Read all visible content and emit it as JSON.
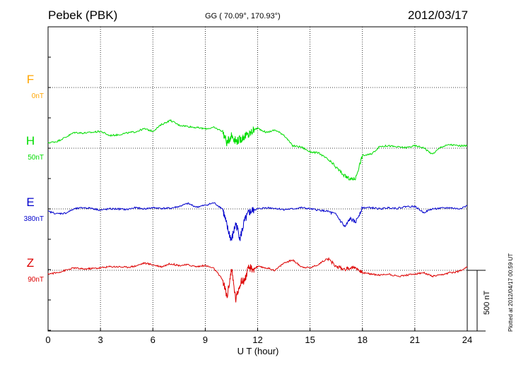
{
  "header": {
    "station": "Pebek (PBK)",
    "coords": "GG ( 70.09°, 170.93°)",
    "date": "2012/03/17"
  },
  "plotted_note": "Plotted at 2012/04/17 00:59 UT",
  "colors": {
    "F": "#ffa500",
    "H": "#00dd00",
    "E": "#0000cc",
    "Z": "#dd0000"
  },
  "chart_data": {
    "type": "line",
    "xlabel": "U T (hour)",
    "xlim": [
      0,
      24
    ],
    "x_ticks": [
      "0",
      "3",
      "6",
      "9",
      "12",
      "15",
      "18",
      "21",
      "24"
    ],
    "scale_bar_label": "500 nT",
    "series": [
      {
        "name": "F",
        "offset_label": "0nT",
        "x": [],
        "y": []
      },
      {
        "name": "H",
        "offset_label": "50nT",
        "x": [
          0,
          0.5,
          1,
          1.5,
          2,
          2.5,
          3,
          3.5,
          4,
          4.5,
          5,
          5.5,
          6,
          6.5,
          7,
          7.5,
          8,
          8.5,
          9,
          9.5,
          10,
          10.25,
          10.5,
          10.75,
          11,
          11.25,
          11.5,
          11.75,
          12,
          12.5,
          13,
          13.5,
          14,
          14.5,
          15,
          15.5,
          16,
          16.5,
          17,
          17.3,
          17.6,
          18,
          18.5,
          19,
          19.5,
          20,
          20.5,
          21,
          21.5,
          22,
          22.5,
          23,
          23.5,
          24
        ],
        "y": [
          45,
          55,
          90,
          130,
          125,
          130,
          140,
          105,
          110,
          125,
          135,
          160,
          140,
          195,
          230,
          190,
          180,
          170,
          160,
          170,
          140,
          40,
          110,
          60,
          70,
          100,
          110,
          150,
          165,
          130,
          150,
          110,
          20,
          10,
          -30,
          -40,
          -90,
          -160,
          -230,
          -255,
          -250,
          -60,
          -50,
          15,
          20,
          10,
          5,
          20,
          5,
          -50,
          10,
          30,
          20,
          20
        ]
      },
      {
        "name": "E",
        "offset_label": "380nT",
        "x": [
          0,
          0.5,
          1,
          1.5,
          2,
          2.5,
          3,
          3.5,
          4,
          4.5,
          5,
          5.5,
          6,
          6.5,
          7,
          7.5,
          8,
          8.5,
          9,
          9.5,
          10,
          10.25,
          10.5,
          10.75,
          11,
          11.25,
          11.5,
          11.75,
          12,
          12.5,
          13,
          13.5,
          14,
          14.5,
          15,
          15.5,
          16,
          16.5,
          17,
          17.3,
          17.6,
          18,
          18.5,
          19,
          19.5,
          20,
          20.5,
          21,
          21.5,
          22,
          22.5,
          23,
          23.5,
          24
        ],
        "y": [
          -20,
          -40,
          -35,
          0,
          10,
          5,
          -10,
          0,
          0,
          -5,
          10,
          0,
          10,
          5,
          5,
          20,
          45,
          15,
          30,
          50,
          0,
          -150,
          -260,
          -120,
          -240,
          -100,
          -30,
          -10,
          0,
          10,
          5,
          -5,
          0,
          10,
          0,
          -10,
          -20,
          -50,
          -150,
          -80,
          -110,
          10,
          10,
          0,
          10,
          5,
          20,
          20,
          -30,
          0,
          5,
          10,
          0,
          25
        ]
      },
      {
        "name": "Z",
        "offset_label": "90nT",
        "x": [
          0,
          0.5,
          1,
          1.5,
          2,
          2.5,
          3,
          3.5,
          4,
          4.5,
          5,
          5.5,
          6,
          6.5,
          7,
          7.5,
          8,
          8.5,
          9,
          9.5,
          10,
          10.25,
          10.5,
          10.75,
          11,
          11.25,
          11.5,
          11.75,
          12,
          12.5,
          13,
          13.5,
          14,
          14.5,
          15,
          15.5,
          16,
          16.5,
          17,
          17.3,
          17.6,
          18,
          18.5,
          19,
          19.5,
          20,
          20.5,
          21,
          21.5,
          22,
          22.5,
          23,
          23.5,
          24
        ],
        "y": [
          -30,
          -20,
          0,
          20,
          10,
          15,
          20,
          30,
          30,
          25,
          35,
          60,
          45,
          30,
          55,
          40,
          45,
          30,
          40,
          15,
          -80,
          -220,
          10,
          -240,
          -100,
          -80,
          20,
          10,
          30,
          20,
          0,
          60,
          85,
          30,
          20,
          50,
          100,
          30,
          10,
          20,
          25,
          -20,
          -30,
          -40,
          -30,
          -50,
          -40,
          -30,
          -20,
          -50,
          -40,
          -20,
          -10,
          30
        ]
      }
    ]
  }
}
